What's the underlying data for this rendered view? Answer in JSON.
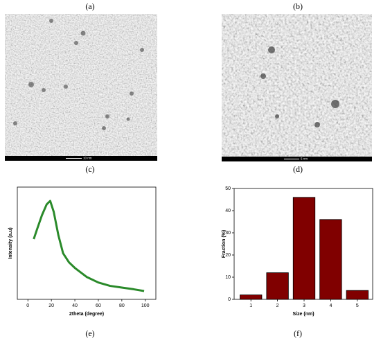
{
  "panel_labels": [
    "(a)",
    "(b)",
    "(c)",
    "(d)",
    "(e)",
    "(f)"
  ],
  "scale_bars": [
    "10 nm",
    "5 nm"
  ],
  "chart_data": [
    {
      "type": "line",
      "xlabel": "2theta (degree)",
      "ylabel": "Intensity (a.u)",
      "x": [
        5,
        8,
        12,
        16,
        19,
        22,
        26,
        30,
        35,
        40,
        50,
        60,
        70,
        80,
        90,
        99
      ],
      "values": [
        53.7,
        63,
        75,
        84.6,
        87.7,
        78,
        57,
        41,
        33,
        28,
        20,
        15,
        12,
        10.5,
        9,
        7.4
      ],
      "color": "#2a8a2a",
      "xlim": [
        -9,
        109
      ],
      "ylim": [
        0,
        100
      ],
      "xticks": [
        0,
        20,
        40,
        60,
        80,
        100
      ]
    },
    {
      "type": "bar",
      "xlabel": "Size (nm)",
      "ylabel": "Fraction (%)",
      "categories": [
        "1",
        "2",
        "3",
        "4",
        "5"
      ],
      "values": [
        2,
        12,
        46,
        36,
        4
      ],
      "color": "#800000",
      "ylim": [
        0,
        50
      ],
      "yticks": [
        0,
        10,
        20,
        30,
        40,
        50
      ]
    }
  ]
}
